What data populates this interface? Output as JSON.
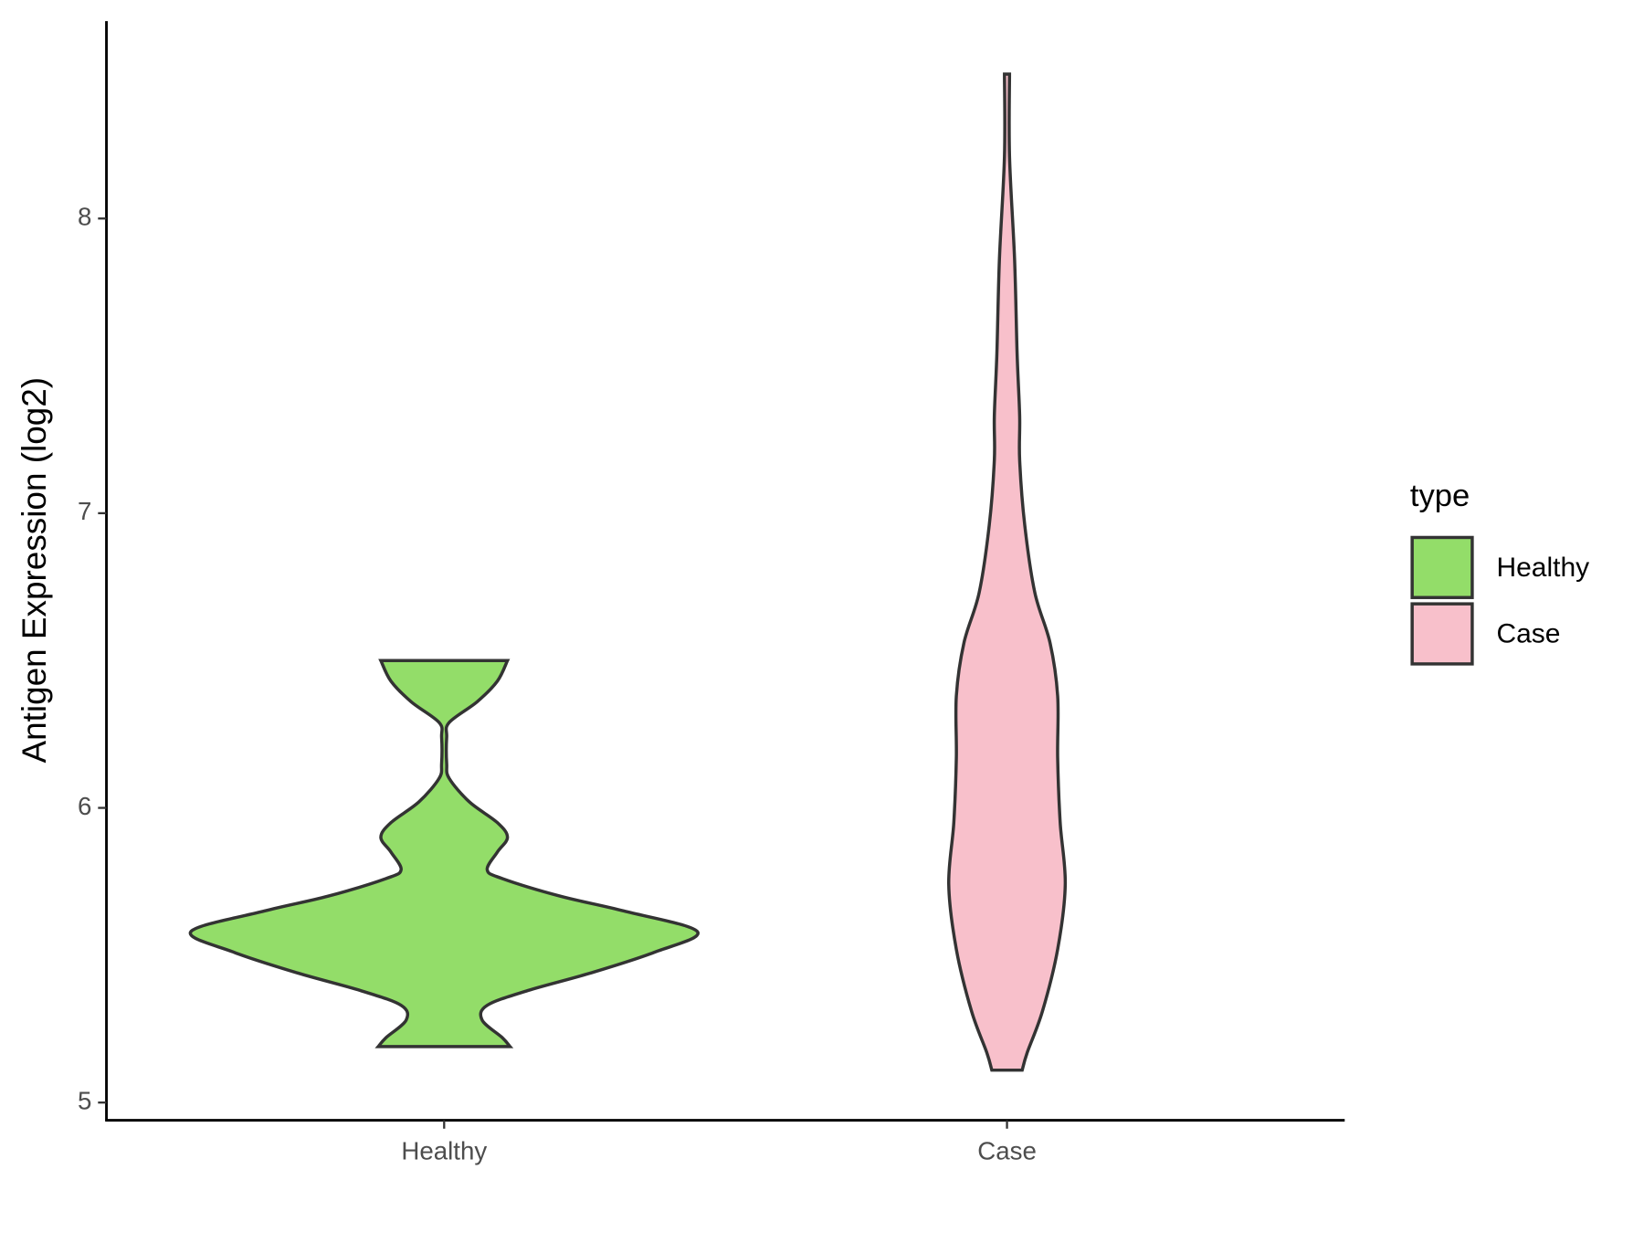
{
  "chart_data": {
    "type": "violin",
    "y_label": "Antigen Expression (log2)",
    "legend_title": "type",
    "categories": [
      "Healthy",
      "Case"
    ],
    "ylim": [
      4.94,
      8.67
    ],
    "yticks": [
      5,
      6,
      7,
      8
    ],
    "legend_position": "right",
    "series": [
      {
        "name": "Healthy",
        "color": "#93dd69",
        "y": [
          5.19,
          5.22,
          5.28,
          5.33,
          5.38,
          5.44,
          5.51,
          5.58,
          5.65,
          5.7,
          5.76,
          5.79,
          5.85,
          5.9,
          5.95,
          6.02,
          6.1,
          6.15,
          6.24,
          6.29,
          6.36,
          6.43,
          6.5
        ],
        "density": [
          0.26,
          0.23,
          0.15,
          0.17,
          0.33,
          0.58,
          0.83,
          1.0,
          0.71,
          0.46,
          0.23,
          0.17,
          0.21,
          0.25,
          0.21,
          0.1,
          0.02,
          0.01,
          0.01,
          0.02,
          0.13,
          0.21,
          0.25
        ]
      },
      {
        "name": "Case",
        "color": "#f8c0cb",
        "y": [
          5.11,
          5.17,
          5.31,
          5.52,
          5.74,
          5.95,
          6.17,
          6.38,
          6.56,
          6.73,
          6.96,
          7.18,
          7.33,
          7.54,
          7.86,
          8.21,
          8.49
        ],
        "density": [
          0.06,
          0.08,
          0.14,
          0.2,
          0.23,
          0.21,
          0.2,
          0.2,
          0.17,
          0.11,
          0.07,
          0.05,
          0.05,
          0.04,
          0.03,
          0.01,
          0.01
        ]
      }
    ]
  }
}
